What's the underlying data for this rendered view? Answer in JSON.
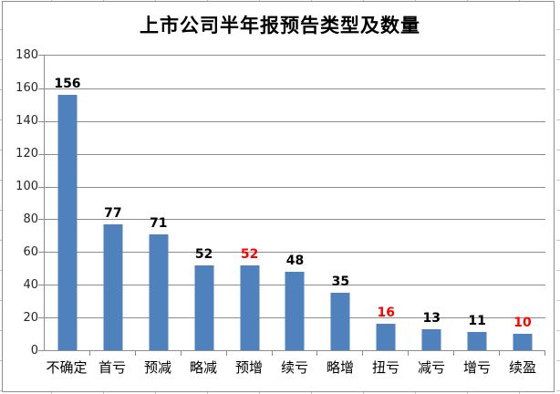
{
  "window": {
    "background_color": "#ffffff",
    "frame_border_color": "#8f8f8f",
    "edge_gridline_color": "#b9c2cf"
  },
  "chart_data": {
    "type": "bar",
    "title": "上市公司半年报预告类型及数量",
    "categories": [
      "不确定",
      "首亏",
      "预减",
      "略减",
      "预增",
      "续亏",
      "略增",
      "扭亏",
      "减亏",
      "增亏",
      "续盈"
    ],
    "values": [
      156,
      77,
      71,
      52,
      52,
      48,
      35,
      16,
      13,
      11,
      10
    ],
    "value_label_colors": [
      "#000000",
      "#000000",
      "#000000",
      "#000000",
      "#ff0000",
      "#000000",
      "#000000",
      "#ff0000",
      "#000000",
      "#000000",
      "#ff0000"
    ],
    "xlabel": "",
    "ylabel": "",
    "ylim": [
      0,
      180
    ],
    "yticks": [
      0,
      20,
      40,
      60,
      80,
      100,
      120,
      140,
      160,
      180
    ],
    "grid": true,
    "legend": "none",
    "bar_color": "#4f81bd",
    "axis_color": "#8c8c8c",
    "grid_color": "#8c8c8c",
    "tick_label_color": "#262626"
  }
}
